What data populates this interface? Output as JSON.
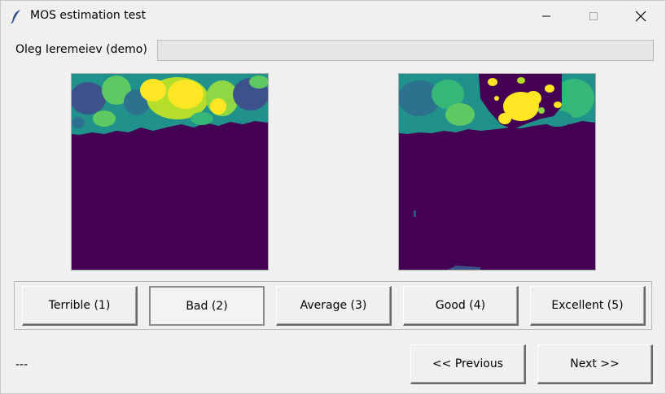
{
  "window": {
    "title": "MOS estimation test",
    "icon": "feather-icon",
    "controls": [
      "minimize-icon",
      "maximize-icon",
      "close-icon"
    ]
  },
  "header": {
    "user_label": "Oleg Ieremeiev (demo)",
    "progress_fraction": 0.0
  },
  "images": {
    "left": {
      "colormap": "viridis",
      "description_icon": "test-image"
    },
    "right": {
      "colormap": "viridis",
      "description_icon": "test-image"
    }
  },
  "rating": {
    "options": [
      {
        "label": "Terrible (1)",
        "value": 1
      },
      {
        "label": "Bad (2)",
        "value": 2,
        "selected": true
      },
      {
        "label": "Average (3)",
        "value": 3
      },
      {
        "label": "Good (4)",
        "value": 4
      },
      {
        "label": "Excellent (5)",
        "value": 5
      }
    ]
  },
  "footer": {
    "status": "---",
    "previous_label": "<< Previous",
    "next_label": "Next >>"
  },
  "colors": {
    "viridis_dark": "#440154",
    "viridis_blue": "#3b528b",
    "viridis_teal": "#21918c",
    "viridis_green": "#5ec962",
    "viridis_yellow": "#fde725"
  }
}
